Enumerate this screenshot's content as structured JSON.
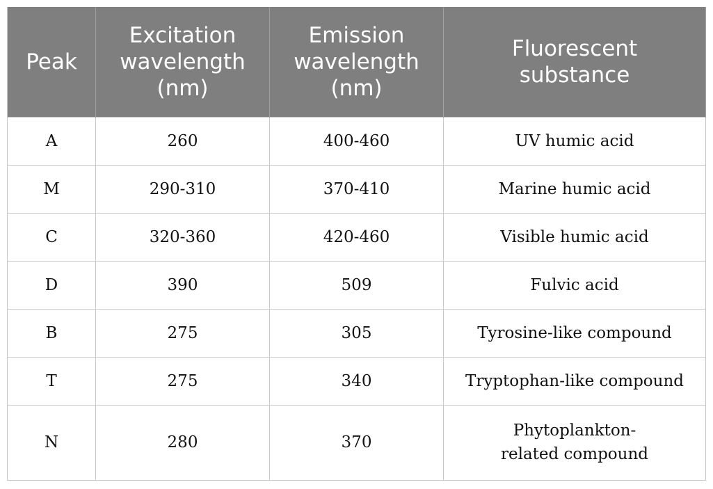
{
  "table": {
    "header": [
      "Peak",
      "Excitation wavelength (nm)",
      "Emission wavelength (nm)",
      "Fluorescent substance"
    ],
    "rows": [
      [
        "A",
        "260",
        "400-460",
        "UV humic acid"
      ],
      [
        "M",
        "290-310",
        "370-410",
        "Marine humic acid"
      ],
      [
        "C",
        "320-360",
        "420-460",
        "Visible humic acid"
      ],
      [
        "D",
        "390",
        "509",
        "Fulvic acid"
      ],
      [
        "B",
        "275",
        "305",
        "Tyrosine-like compound"
      ],
      [
        "T",
        "275",
        "340",
        "Tryptophan-like compound"
      ],
      [
        "N",
        "280",
        "370",
        "Phytoplankton-related compound"
      ]
    ]
  }
}
